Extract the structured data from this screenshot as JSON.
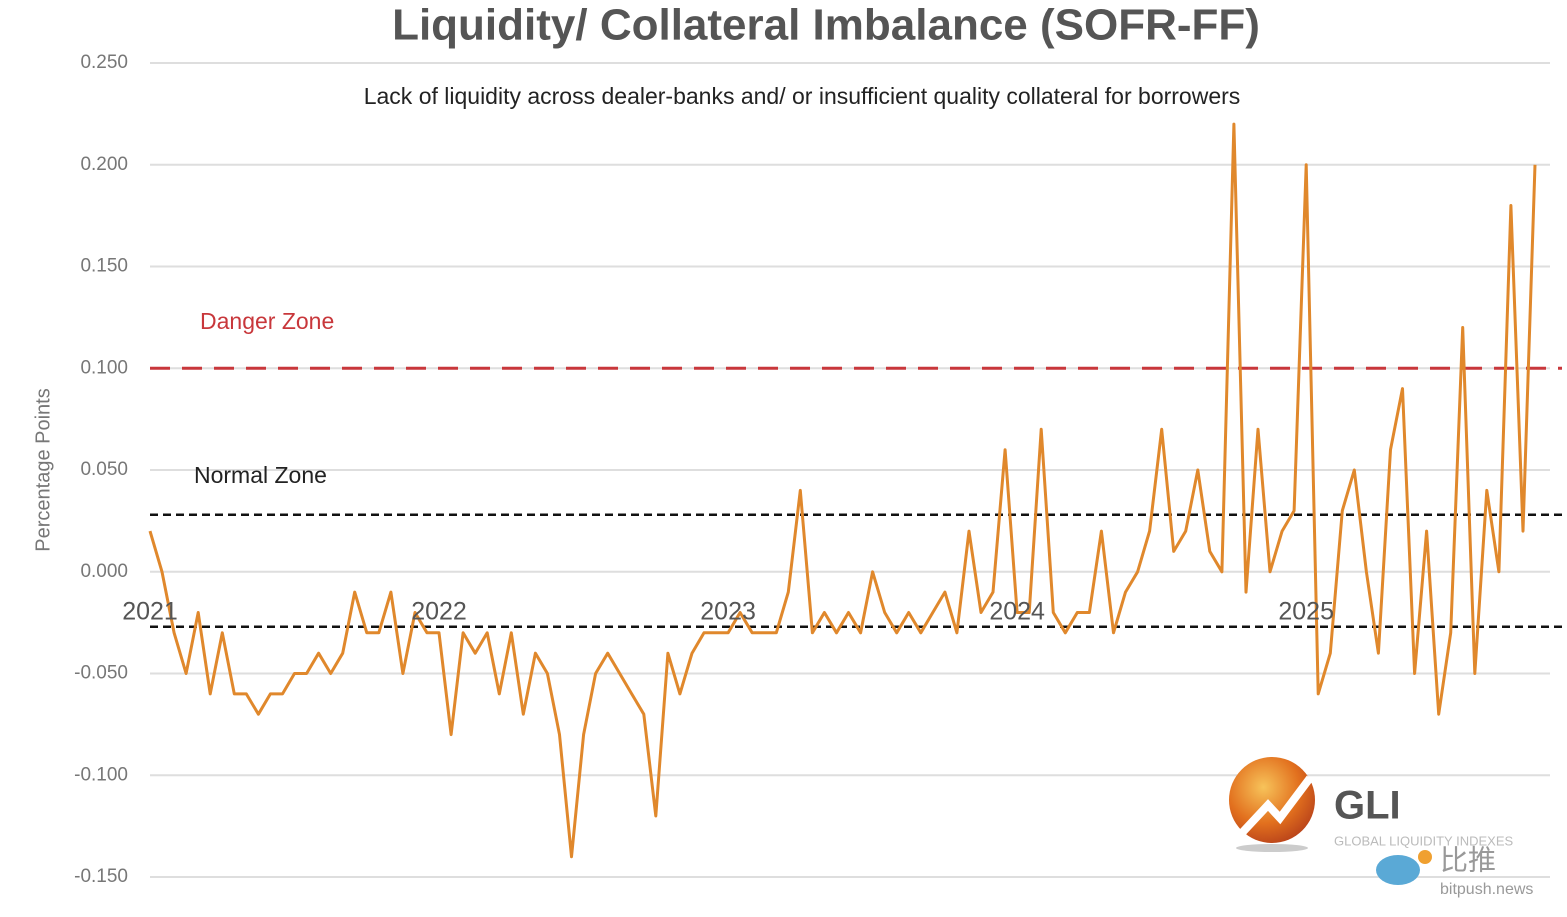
{
  "chart_data": {
    "type": "line",
    "title": "Liquidity/ Collateral Imbalance (SOFR-FF)",
    "subtitle": "Lack of liquidity across dealer-banks and/ or insufficient quality collateral for borrowers",
    "y_label": "Percentage Points",
    "annotations": [
      "Danger Zone",
      "Normal Zone"
    ],
    "reference_lines": [
      {
        "value": 0.1,
        "color": "#c8373b",
        "style": "long-dash"
      },
      {
        "value": 0.028,
        "color": "#111111",
        "style": "short-dash"
      },
      {
        "value": -0.027,
        "color": "#111111",
        "style": "short-dash"
      }
    ],
    "categories": [
      "2021",
      null,
      null,
      null,
      null,
      null,
      null,
      null,
      null,
      null,
      null,
      null,
      null,
      null,
      null,
      null,
      null,
      null,
      null,
      null,
      null,
      null,
      null,
      null,
      "2022",
      null,
      null,
      null,
      null,
      null,
      null,
      null,
      null,
      null,
      null,
      null,
      null,
      null,
      null,
      null,
      null,
      null,
      null,
      null,
      null,
      null,
      null,
      null,
      "2023",
      null,
      null,
      null,
      null,
      null,
      null,
      null,
      null,
      null,
      null,
      null,
      null,
      null,
      null,
      null,
      null,
      null,
      null,
      null,
      null,
      null,
      null,
      null,
      "2024",
      null,
      null,
      null,
      null,
      null,
      null,
      null,
      null,
      null,
      null,
      null,
      null,
      null,
      null,
      null,
      null,
      null,
      null,
      null,
      null,
      null,
      null,
      null,
      "2025",
      null,
      null,
      null,
      null,
      null,
      null,
      null,
      null,
      null,
      null,
      null,
      null,
      null,
      null,
      null,
      null,
      null,
      null,
      null
    ],
    "series": [
      {
        "name": "SOFR-FF",
        "color": "#e0882c",
        "values": [
          0.02,
          0.0,
          -0.03,
          -0.05,
          -0.02,
          -0.06,
          -0.03,
          -0.06,
          -0.06,
          -0.07,
          -0.06,
          -0.06,
          -0.05,
          -0.05,
          -0.04,
          -0.05,
          -0.04,
          -0.01,
          -0.03,
          -0.03,
          -0.01,
          -0.05,
          -0.02,
          -0.03,
          -0.03,
          -0.08,
          -0.03,
          -0.04,
          -0.03,
          -0.06,
          -0.03,
          -0.07,
          -0.04,
          -0.05,
          -0.08,
          -0.14,
          -0.08,
          -0.05,
          -0.04,
          -0.05,
          -0.06,
          -0.07,
          -0.12,
          -0.04,
          -0.06,
          -0.04,
          -0.03,
          -0.03,
          -0.03,
          -0.02,
          -0.03,
          -0.03,
          -0.03,
          -0.01,
          0.04,
          -0.03,
          -0.02,
          -0.03,
          -0.02,
          -0.03,
          0.0,
          -0.02,
          -0.03,
          -0.02,
          -0.03,
          -0.02,
          -0.01,
          -0.03,
          0.02,
          -0.02,
          -0.01,
          0.06,
          -0.02,
          -0.02,
          0.07,
          -0.02,
          -0.03,
          -0.02,
          -0.02,
          0.02,
          -0.03,
          -0.01,
          0.0,
          0.02,
          0.07,
          0.01,
          0.02,
          0.05,
          0.01,
          0.0,
          0.22,
          -0.01,
          0.07,
          0.0,
          0.02,
          0.03,
          0.2,
          -0.06,
          -0.04,
          0.03,
          0.05,
          0.0,
          -0.04,
          0.06,
          0.09,
          -0.05,
          0.02,
          -0.07,
          -0.03,
          0.12,
          -0.05,
          0.04,
          0.0,
          0.18,
          0.02,
          0.2
        ]
      }
    ],
    "ylim": [
      -0.15,
      0.25
    ],
    "yticks": [
      {
        "value": -0.15,
        "label": "-0.150"
      },
      {
        "value": -0.1,
        "label": "-0.100"
      },
      {
        "value": -0.05,
        "label": "-0.050"
      },
      {
        "value": 0,
        "label": "0.000"
      },
      {
        "value": 0.05,
        "label": "0.050"
      },
      {
        "value": 0.1,
        "label": "0.100"
      },
      {
        "value": 0.15,
        "label": "0.150"
      },
      {
        "value": 0.2,
        "label": "0.200"
      },
      {
        "value": 0.25,
        "label": "0.250"
      }
    ],
    "grid": true,
    "logo": {
      "name": "GLI",
      "tagline": "GLOBAL LIQUIDITY INDEXES"
    },
    "watermark": {
      "name": "比推",
      "site": "bitpush.news"
    }
  }
}
